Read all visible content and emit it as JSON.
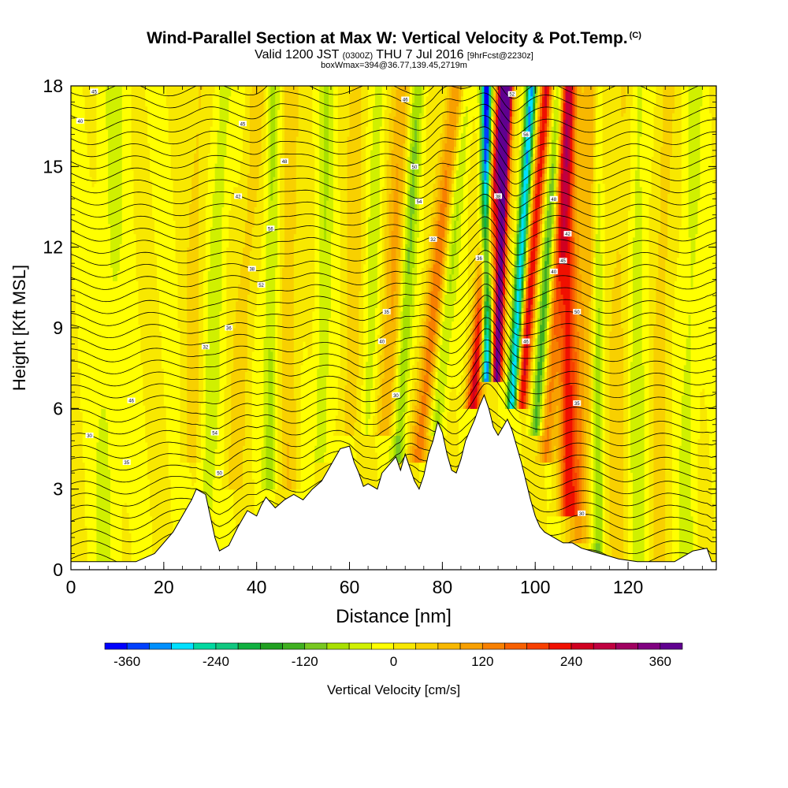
{
  "title": {
    "main": "Wind-Parallel Section at Max W: Vertical Velocity & Pot.Temp.",
    "main_mark": "(C)",
    "valid_a": "Valid 1200 JST",
    "valid_zulu": "(0300Z)",
    "valid_b": "THU 7 Jul 2016",
    "forecast": "[9hrFcst@2230z]",
    "boxline": "boxWmax=394@36.77,139.45,2719m"
  },
  "chart_data": {
    "type": "heatmap",
    "title": "Wind-Parallel Section at Max W: Vertical Velocity & Pot.Temp.",
    "xlabel": "Distance [nm]",
    "ylabel": "Height [Kft MSL]",
    "xlim": [
      0,
      139
    ],
    "ylim": [
      0,
      18
    ],
    "x_ticks": [
      0,
      20,
      40,
      60,
      80,
      100,
      120
    ],
    "y_ticks": [
      0,
      3,
      6,
      9,
      12,
      15,
      18
    ],
    "colorbar": {
      "label": "Vertical Velocity [cm/s]",
      "ticks": [
        -360,
        -240,
        -120,
        0,
        120,
        240,
        360
      ],
      "bins": [
        -390,
        -360,
        -330,
        -300,
        -270,
        -240,
        -210,
        -180,
        -150,
        -120,
        -90,
        -60,
        -30,
        0,
        30,
        60,
        90,
        120,
        150,
        180,
        210,
        240,
        270,
        300,
        330,
        360,
        390
      ],
      "colors": [
        "#0000ff",
        "#0040ff",
        "#0090ff",
        "#00e0ff",
        "#00d8a0",
        "#10c880",
        "#10b040",
        "#20a020",
        "#40b020",
        "#78c820",
        "#a8e000",
        "#d0f000",
        "#ffff00",
        "#f8e800",
        "#f8d000",
        "#f8b800",
        "#f8a000",
        "#f88000",
        "#f86000",
        "#f84000",
        "#f01000",
        "#d00020",
        "#c00040",
        "#a00060",
        "#800080",
        "#600090"
      ]
    },
    "terrain_kft": [
      [
        0,
        0.3
      ],
      [
        14,
        0.3
      ],
      [
        18,
        0.6
      ],
      [
        20,
        1.0
      ],
      [
        22,
        1.4
      ],
      [
        24,
        2.0
      ],
      [
        26,
        2.6
      ],
      [
        27,
        3.0
      ],
      [
        29,
        2.8
      ],
      [
        30,
        2.0
      ],
      [
        31,
        1.2
      ],
      [
        32,
        0.7
      ],
      [
        34,
        0.9
      ],
      [
        36,
        1.6
      ],
      [
        38,
        2.2
      ],
      [
        40,
        2.0
      ],
      [
        41,
        2.4
      ],
      [
        42,
        2.7
      ],
      [
        44,
        2.3
      ],
      [
        46,
        2.6
      ],
      [
        48,
        2.8
      ],
      [
        50,
        2.6
      ],
      [
        52,
        3.0
      ],
      [
        54,
        3.3
      ],
      [
        56,
        3.9
      ],
      [
        58,
        4.5
      ],
      [
        60,
        4.6
      ],
      [
        61,
        4.0
      ],
      [
        62,
        3.6
      ],
      [
        63,
        3.1
      ],
      [
        64,
        3.2
      ],
      [
        66,
        3.0
      ],
      [
        67,
        3.6
      ],
      [
        68,
        3.8
      ],
      [
        70,
        4.2
      ],
      [
        71,
        3.7
      ],
      [
        72,
        4.3
      ],
      [
        74,
        3.3
      ],
      [
        75,
        3.0
      ],
      [
        76,
        3.5
      ],
      [
        77,
        4.3
      ],
      [
        78,
        4.8
      ],
      [
        79,
        5.5
      ],
      [
        80,
        5.1
      ],
      [
        81,
        4.3
      ],
      [
        82,
        3.7
      ],
      [
        83,
        3.6
      ],
      [
        84,
        4.1
      ],
      [
        85,
        4.8
      ],
      [
        86,
        5.2
      ],
      [
        87,
        5.6
      ],
      [
        88,
        6.1
      ],
      [
        89,
        6.5
      ],
      [
        90,
        6.0
      ],
      [
        91,
        5.3
      ],
      [
        92,
        5.0
      ],
      [
        93,
        5.3
      ],
      [
        94,
        5.6
      ],
      [
        95,
        5.2
      ],
      [
        96,
        4.6
      ],
      [
        97,
        4.0
      ],
      [
        98,
        3.3
      ],
      [
        99,
        2.6
      ],
      [
        100,
        2.0
      ],
      [
        101,
        1.6
      ],
      [
        102,
        1.4
      ],
      [
        104,
        1.2
      ],
      [
        106,
        1.0
      ],
      [
        108,
        1.0
      ],
      [
        110,
        0.8
      ],
      [
        112,
        0.7
      ],
      [
        114,
        0.6
      ],
      [
        116,
        0.5
      ],
      [
        118,
        0.4
      ],
      [
        122,
        0.3
      ],
      [
        128,
        0.3
      ],
      [
        130,
        0.3
      ],
      [
        134,
        0.7
      ],
      [
        137,
        0.8
      ],
      [
        138,
        0.3
      ],
      [
        139,
        0.3
      ]
    ],
    "theta_contour_interval": 1,
    "theta_contour_label_values": [
      "45",
      "40",
      "35",
      "30",
      "46",
      "50",
      "54",
      "32",
      "36",
      "38",
      "52",
      "56",
      "48",
      "42"
    ]
  }
}
